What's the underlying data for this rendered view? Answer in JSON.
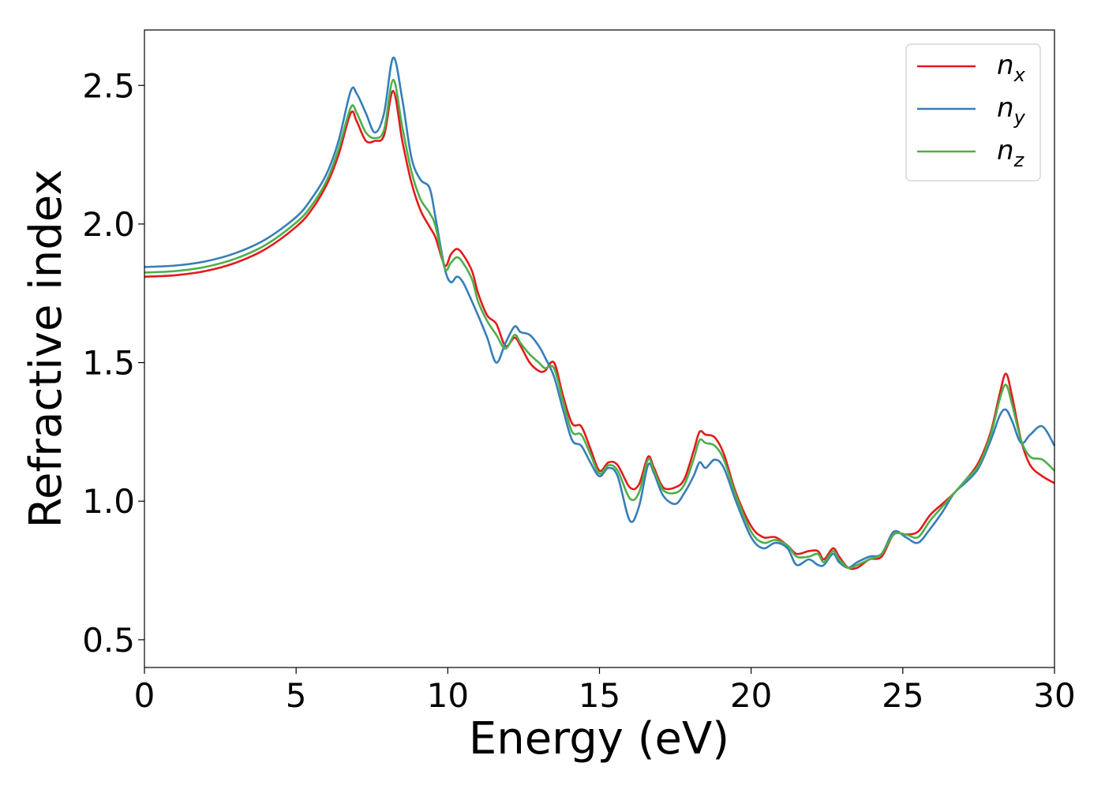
{
  "chart_data": {
    "type": "line",
    "xlabel": "Energy (eV)",
    "ylabel": "Refractive index",
    "xlim": [
      0,
      30
    ],
    "ylim": [
      0.4,
      2.7
    ],
    "xticks": [
      0,
      5,
      10,
      15,
      20,
      25,
      30
    ],
    "xtick_labels": [
      "0",
      "5",
      "10",
      "15",
      "20",
      "25",
      "30"
    ],
    "yticks": [
      0.5,
      1.0,
      1.5,
      2.0,
      2.5
    ],
    "ytick_labels": [
      "0.5",
      "1.0",
      "1.5",
      "2.0",
      "2.5"
    ],
    "grid": false,
    "legend_position": "top-right",
    "series": [
      {
        "name": "n_x",
        "label_main": "n",
        "label_sub": "x",
        "color": "#e41a1c",
        "points": [
          [
            0,
            1.81
          ],
          [
            1,
            1.815
          ],
          [
            2,
            1.83
          ],
          [
            3,
            1.86
          ],
          [
            4,
            1.91
          ],
          [
            5,
            1.99
          ],
          [
            5.5,
            2.05
          ],
          [
            6,
            2.14
          ],
          [
            6.4,
            2.25
          ],
          [
            6.8,
            2.4
          ],
          [
            7.0,
            2.37
          ],
          [
            7.3,
            2.3
          ],
          [
            7.6,
            2.3
          ],
          [
            7.9,
            2.32
          ],
          [
            8.2,
            2.48
          ],
          [
            8.5,
            2.3
          ],
          [
            8.8,
            2.15
          ],
          [
            9.1,
            2.05
          ],
          [
            9.4,
            1.99
          ],
          [
            9.6,
            1.95
          ],
          [
            9.9,
            1.85
          ],
          [
            10.1,
            1.89
          ],
          [
            10.3,
            1.91
          ],
          [
            10.5,
            1.89
          ],
          [
            10.8,
            1.83
          ],
          [
            11.0,
            1.75
          ],
          [
            11.3,
            1.67
          ],
          [
            11.6,
            1.64
          ],
          [
            11.9,
            1.56
          ],
          [
            12.2,
            1.59
          ],
          [
            12.4,
            1.56
          ],
          [
            12.7,
            1.5
          ],
          [
            13.0,
            1.47
          ],
          [
            13.2,
            1.47
          ],
          [
            13.5,
            1.5
          ],
          [
            13.8,
            1.38
          ],
          [
            14.1,
            1.28
          ],
          [
            14.4,
            1.27
          ],
          [
            14.7,
            1.19
          ],
          [
            15.0,
            1.11
          ],
          [
            15.3,
            1.14
          ],
          [
            15.6,
            1.13
          ],
          [
            16.0,
            1.05
          ],
          [
            16.3,
            1.06
          ],
          [
            16.6,
            1.16
          ],
          [
            16.8,
            1.12
          ],
          [
            17.1,
            1.05
          ],
          [
            17.5,
            1.05
          ],
          [
            17.8,
            1.08
          ],
          [
            18.1,
            1.18
          ],
          [
            18.3,
            1.25
          ],
          [
            18.5,
            1.24
          ],
          [
            18.8,
            1.23
          ],
          [
            19.1,
            1.17
          ],
          [
            19.5,
            1.03
          ],
          [
            20.0,
            0.91
          ],
          [
            20.4,
            0.87
          ],
          [
            20.8,
            0.87
          ],
          [
            21.2,
            0.84
          ],
          [
            21.5,
            0.81
          ],
          [
            21.9,
            0.82
          ],
          [
            22.2,
            0.82
          ],
          [
            22.4,
            0.79
          ],
          [
            22.7,
            0.83
          ],
          [
            22.9,
            0.8
          ],
          [
            23.2,
            0.76
          ],
          [
            23.5,
            0.76
          ],
          [
            23.9,
            0.79
          ],
          [
            24.3,
            0.8
          ],
          [
            24.7,
            0.88
          ],
          [
            25.1,
            0.88
          ],
          [
            25.5,
            0.89
          ],
          [
            25.9,
            0.95
          ],
          [
            26.3,
            0.99
          ],
          [
            26.7,
            1.03
          ],
          [
            27.1,
            1.08
          ],
          [
            27.5,
            1.14
          ],
          [
            27.9,
            1.25
          ],
          [
            28.2,
            1.39
          ],
          [
            28.4,
            1.46
          ],
          [
            28.6,
            1.38
          ],
          [
            28.9,
            1.22
          ],
          [
            29.2,
            1.13
          ],
          [
            29.6,
            1.09
          ],
          [
            30,
            1.065
          ]
        ]
      },
      {
        "name": "n_y",
        "label_main": "n",
        "label_sub": "y",
        "color": "#377eb8",
        "points": [
          [
            0,
            1.845
          ],
          [
            1,
            1.85
          ],
          [
            2,
            1.865
          ],
          [
            3,
            1.895
          ],
          [
            4,
            1.945
          ],
          [
            5,
            2.025
          ],
          [
            5.5,
            2.09
          ],
          [
            6,
            2.18
          ],
          [
            6.4,
            2.3
          ],
          [
            6.8,
            2.48
          ],
          [
            7.0,
            2.47
          ],
          [
            7.3,
            2.4
          ],
          [
            7.6,
            2.33
          ],
          [
            7.9,
            2.4
          ],
          [
            8.2,
            2.6
          ],
          [
            8.5,
            2.45
          ],
          [
            8.8,
            2.24
          ],
          [
            9.1,
            2.16
          ],
          [
            9.4,
            2.13
          ],
          [
            9.6,
            2.02
          ],
          [
            9.9,
            1.84
          ],
          [
            10.1,
            1.79
          ],
          [
            10.3,
            1.81
          ],
          [
            10.5,
            1.79
          ],
          [
            10.8,
            1.72
          ],
          [
            11.0,
            1.67
          ],
          [
            11.3,
            1.59
          ],
          [
            11.6,
            1.5
          ],
          [
            11.9,
            1.57
          ],
          [
            12.2,
            1.63
          ],
          [
            12.4,
            1.61
          ],
          [
            12.7,
            1.6
          ],
          [
            13.0,
            1.56
          ],
          [
            13.2,
            1.52
          ],
          [
            13.5,
            1.45
          ],
          [
            13.8,
            1.33
          ],
          [
            14.1,
            1.22
          ],
          [
            14.4,
            1.2
          ],
          [
            14.7,
            1.14
          ],
          [
            15.0,
            1.09
          ],
          [
            15.3,
            1.12
          ],
          [
            15.6,
            1.09
          ],
          [
            16.0,
            0.93
          ],
          [
            16.3,
            0.98
          ],
          [
            16.6,
            1.13
          ],
          [
            16.8,
            1.1
          ],
          [
            17.1,
            1.02
          ],
          [
            17.5,
            0.99
          ],
          [
            17.8,
            1.03
          ],
          [
            18.1,
            1.09
          ],
          [
            18.3,
            1.14
          ],
          [
            18.5,
            1.12
          ],
          [
            18.8,
            1.15
          ],
          [
            19.1,
            1.12
          ],
          [
            19.5,
            1.0
          ],
          [
            20.0,
            0.87
          ],
          [
            20.4,
            0.83
          ],
          [
            20.8,
            0.85
          ],
          [
            21.2,
            0.83
          ],
          [
            21.5,
            0.77
          ],
          [
            21.9,
            0.79
          ],
          [
            22.2,
            0.77
          ],
          [
            22.4,
            0.77
          ],
          [
            22.7,
            0.81
          ],
          [
            22.9,
            0.78
          ],
          [
            23.2,
            0.76
          ],
          [
            23.5,
            0.78
          ],
          [
            23.9,
            0.8
          ],
          [
            24.3,
            0.81
          ],
          [
            24.7,
            0.89
          ],
          [
            25.1,
            0.87
          ],
          [
            25.5,
            0.85
          ],
          [
            25.9,
            0.9
          ],
          [
            26.3,
            0.96
          ],
          [
            26.7,
            1.03
          ],
          [
            27.1,
            1.07
          ],
          [
            27.5,
            1.12
          ],
          [
            27.9,
            1.22
          ],
          [
            28.2,
            1.31
          ],
          [
            28.4,
            1.33
          ],
          [
            28.6,
            1.29
          ],
          [
            28.9,
            1.21
          ],
          [
            29.2,
            1.24
          ],
          [
            29.6,
            1.27
          ],
          [
            30,
            1.2
          ]
        ]
      },
      {
        "name": "n_z",
        "label_main": "n",
        "label_sub": "z",
        "color": "#4daf4a",
        "points": [
          [
            0,
            1.825
          ],
          [
            1,
            1.83
          ],
          [
            2,
            1.845
          ],
          [
            3,
            1.875
          ],
          [
            4,
            1.925
          ],
          [
            5,
            2.005
          ],
          [
            5.5,
            2.065
          ],
          [
            6,
            2.155
          ],
          [
            6.4,
            2.27
          ],
          [
            6.8,
            2.42
          ],
          [
            7.0,
            2.4
          ],
          [
            7.3,
            2.33
          ],
          [
            7.6,
            2.31
          ],
          [
            7.9,
            2.34
          ],
          [
            8.2,
            2.52
          ],
          [
            8.5,
            2.35
          ],
          [
            8.8,
            2.19
          ],
          [
            9.1,
            2.09
          ],
          [
            9.4,
            2.04
          ],
          [
            9.6,
            1.99
          ],
          [
            9.9,
            1.84
          ],
          [
            10.1,
            1.86
          ],
          [
            10.3,
            1.88
          ],
          [
            10.5,
            1.86
          ],
          [
            10.8,
            1.8
          ],
          [
            11.0,
            1.72
          ],
          [
            11.3,
            1.65
          ],
          [
            11.6,
            1.6
          ],
          [
            11.9,
            1.55
          ],
          [
            12.2,
            1.6
          ],
          [
            12.4,
            1.57
          ],
          [
            12.7,
            1.53
          ],
          [
            13.0,
            1.5
          ],
          [
            13.2,
            1.48
          ],
          [
            13.5,
            1.48
          ],
          [
            13.8,
            1.36
          ],
          [
            14.1,
            1.25
          ],
          [
            14.4,
            1.24
          ],
          [
            14.7,
            1.17
          ],
          [
            15.0,
            1.1
          ],
          [
            15.3,
            1.13
          ],
          [
            15.6,
            1.11
          ],
          [
            16.0,
            1.01
          ],
          [
            16.3,
            1.03
          ],
          [
            16.6,
            1.15
          ],
          [
            16.8,
            1.11
          ],
          [
            17.1,
            1.04
          ],
          [
            17.5,
            1.03
          ],
          [
            17.8,
            1.06
          ],
          [
            18.1,
            1.15
          ],
          [
            18.3,
            1.22
          ],
          [
            18.5,
            1.21
          ],
          [
            18.8,
            1.2
          ],
          [
            19.1,
            1.15
          ],
          [
            19.5,
            1.02
          ],
          [
            20.0,
            0.89
          ],
          [
            20.4,
            0.85
          ],
          [
            20.8,
            0.86
          ],
          [
            21.2,
            0.84
          ],
          [
            21.5,
            0.8
          ],
          [
            21.9,
            0.8
          ],
          [
            22.2,
            0.81
          ],
          [
            22.4,
            0.78
          ],
          [
            22.7,
            0.82
          ],
          [
            22.9,
            0.79
          ],
          [
            23.2,
            0.76
          ],
          [
            23.5,
            0.77
          ],
          [
            23.9,
            0.79
          ],
          [
            24.3,
            0.81
          ],
          [
            24.7,
            0.88
          ],
          [
            25.1,
            0.88
          ],
          [
            25.5,
            0.87
          ],
          [
            25.9,
            0.93
          ],
          [
            26.3,
            0.98
          ],
          [
            26.7,
            1.03
          ],
          [
            27.1,
            1.08
          ],
          [
            27.5,
            1.13
          ],
          [
            27.9,
            1.24
          ],
          [
            28.2,
            1.37
          ],
          [
            28.4,
            1.42
          ],
          [
            28.6,
            1.35
          ],
          [
            28.9,
            1.22
          ],
          [
            29.2,
            1.16
          ],
          [
            29.6,
            1.15
          ],
          [
            30,
            1.11
          ]
        ]
      }
    ]
  }
}
